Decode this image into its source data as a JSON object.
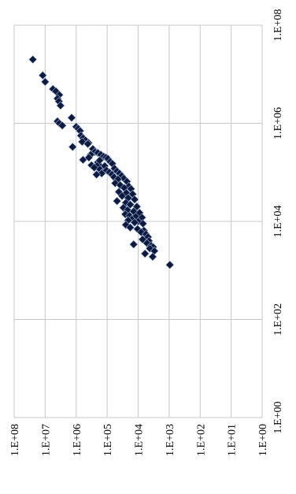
{
  "chart_data": {
    "type": "scatter",
    "title": "",
    "legend": "none",
    "grid": true,
    "x_axis": {
      "orientation": "vertical (rotated 90°), values increase upward",
      "scale": "log",
      "range": [
        1,
        100000000
      ],
      "tick_labels": [
        "1.E+00",
        "1.E+02",
        "1.E+04",
        "1.E+06",
        "1.E+08"
      ]
    },
    "y_axis": {
      "orientation": "horizontal (rotated 90°), values decrease to the right",
      "scale": "log",
      "range": [
        100000000,
        1
      ],
      "tick_labels": [
        "1.E+08",
        "1.E+07",
        "1.E+06",
        "1.E+05",
        "1.E+04",
        "1.E+03",
        "1.E+02",
        "1.E+01",
        "1.E+00"
      ]
    },
    "marker": {
      "shape": "diamond",
      "color": "#0d1a3d",
      "edge": "#9db3d9"
    },
    "points": [
      {
        "x": 20000000,
        "y": 25000000
      },
      {
        "x": 9500000,
        "y": 12000000
      },
      {
        "x": 7000000,
        "y": 10000000
      },
      {
        "x": 5000000,
        "y": 5600000
      },
      {
        "x": 4500000,
        "y": 4500000
      },
      {
        "x": 3800000,
        "y": 3500000
      },
      {
        "x": 3200000,
        "y": 4000000
      },
      {
        "x": 2800000,
        "y": 3600000
      },
      {
        "x": 2300000,
        "y": 3200000
      },
      {
        "x": 1300000,
        "y": 1400000
      },
      {
        "x": 1100000,
        "y": 4000000
      },
      {
        "x": 1000000,
        "y": 3500000
      },
      {
        "x": 900000,
        "y": 2800000
      },
      {
        "x": 850000,
        "y": 1000000
      },
      {
        "x": 780000,
        "y": 860000
      },
      {
        "x": 700000,
        "y": 750000
      },
      {
        "x": 560000,
        "y": 700000
      },
      {
        "x": 500000,
        "y": 600000
      },
      {
        "x": 450000,
        "y": 500000
      },
      {
        "x": 420000,
        "y": 640000
      },
      {
        "x": 400000,
        "y": 400000
      },
      {
        "x": 380000,
        "y": 420000
      },
      {
        "x": 330000,
        "y": 1300000
      },
      {
        "x": 300000,
        "y": 290000
      },
      {
        "x": 260000,
        "y": 250000
      },
      {
        "x": 230000,
        "y": 340000
      },
      {
        "x": 200000,
        "y": 390000
      },
      {
        "x": 180000,
        "y": 600000
      },
      {
        "x": 160000,
        "y": 200000
      },
      {
        "x": 145000,
        "y": 190000
      },
      {
        "x": 140000,
        "y": 320000
      },
      {
        "x": 125000,
        "y": 260000
      },
      {
        "x": 115000,
        "y": 170000
      },
      {
        "x": 100000,
        "y": 140000
      },
      {
        "x": 95000,
        "y": 150000
      },
      {
        "x": 90000,
        "y": 220000
      },
      {
        "x": 250000,
        "y": 200000
      },
      {
        "x": 230000,
        "y": 160000
      },
      {
        "x": 210000,
        "y": 130000
      },
      {
        "x": 200000,
        "y": 110000
      },
      {
        "x": 190000,
        "y": 95000
      },
      {
        "x": 175000,
        "y": 175000
      },
      {
        "x": 165000,
        "y": 80000
      },
      {
        "x": 150000,
        "y": 68000
      },
      {
        "x": 135000,
        "y": 120000
      },
      {
        "x": 120000,
        "y": 58000
      },
      {
        "x": 110000,
        "y": 105000
      },
      {
        "x": 105000,
        "y": 48000
      },
      {
        "x": 100000,
        "y": 85000
      },
      {
        "x": 95000,
        "y": 40000
      },
      {
        "x": 90000,
        "y": 70000
      },
      {
        "x": 85000,
        "y": 34000
      },
      {
        "x": 80000,
        "y": 60000
      },
      {
        "x": 75000,
        "y": 29000
      },
      {
        "x": 72000,
        "y": 45000
      },
      {
        "x": 65000,
        "y": 23000
      },
      {
        "x": 60000,
        "y": 55000
      },
      {
        "x": 55000,
        "y": 38000
      },
      {
        "x": 52000,
        "y": 20000
      },
      {
        "x": 48000,
        "y": 28000
      },
      {
        "x": 46000,
        "y": 17000
      },
      {
        "x": 40000,
        "y": 42000
      },
      {
        "x": 38000,
        "y": 24000
      },
      {
        "x": 36000,
        "y": 15000
      },
      {
        "x": 33000,
        "y": 33000
      },
      {
        "x": 30000,
        "y": 21000
      },
      {
        "x": 28000,
        "y": 13000
      },
      {
        "x": 26000,
        "y": 48000
      },
      {
        "x": 24000,
        "y": 25000
      },
      {
        "x": 22000,
        "y": 18000
      },
      {
        "x": 20000,
        "y": 11000
      },
      {
        "x": 19000,
        "y": 30000
      },
      {
        "x": 17000,
        "y": 22000
      },
      {
        "x": 16000,
        "y": 14000
      },
      {
        "x": 15000,
        "y": 9000
      },
      {
        "x": 14000,
        "y": 26000
      },
      {
        "x": 13000,
        "y": 19000
      },
      {
        "x": 12500,
        "y": 12000
      },
      {
        "x": 12000,
        "y": 7500
      },
      {
        "x": 11000,
        "y": 16000
      },
      {
        "x": 10500,
        "y": 21000
      },
      {
        "x": 10000,
        "y": 10000
      },
      {
        "x": 9500,
        "y": 13000
      },
      {
        "x": 9000,
        "y": 7000
      },
      {
        "x": 8500,
        "y": 25000
      },
      {
        "x": 7500,
        "y": 18000
      },
      {
        "x": 7000,
        "y": 10500
      },
      {
        "x": 6500,
        "y": 6500
      },
      {
        "x": 6000,
        "y": 8000
      },
      {
        "x": 5500,
        "y": 5600
      },
      {
        "x": 4800,
        "y": 4800
      },
      {
        "x": 4300,
        "y": 7200
      },
      {
        "x": 4000,
        "y": 4500
      },
      {
        "x": 3600,
        "y": 5200
      },
      {
        "x": 3200,
        "y": 3800
      },
      {
        "x": 3000,
        "y": 3300
      },
      {
        "x": 3400,
        "y": 14000
      },
      {
        "x": 2800,
        "y": 4200
      },
      {
        "x": 2500,
        "y": 3000
      },
      {
        "x": 2200,
        "y": 6000
      },
      {
        "x": 1900,
        "y": 3400
      },
      {
        "x": 1300,
        "y": 950
      }
    ]
  }
}
